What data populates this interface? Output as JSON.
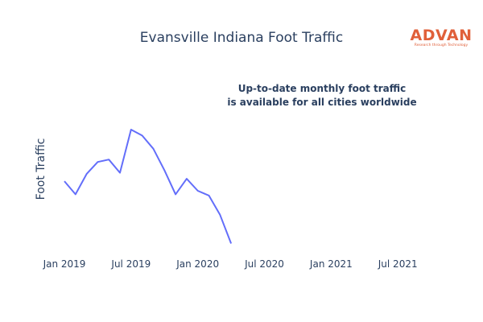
{
  "logo": {
    "name": "ADVAN",
    "tagline": "Research through Technology",
    "color": "#e0603a"
  },
  "annotation": {
    "line1": "Up-to-date monthly foot traffic",
    "line2": "is available for all cities worldwide"
  },
  "chart_data": {
    "type": "line",
    "title": "Evansville Indiana Foot Traffic",
    "xlabel": "",
    "ylabel": "Foot Traffic",
    "x_ticks": [
      "Jan 2019",
      "Jul 2019",
      "Jan 2020",
      "Jul 2020",
      "Jan 2021",
      "Jul 2021"
    ],
    "xlim": [
      "2019-01",
      "2021-08"
    ],
    "ylim": [
      0,
      100
    ],
    "grid": false,
    "y_tick_labels_visible": false,
    "line_color": "#636efa",
    "series": [
      {
        "x": [
          "2019-01",
          "2019-02",
          "2019-03",
          "2019-04",
          "2019-05",
          "2019-06",
          "2019-07",
          "2019-08",
          "2019-09",
          "2019-10",
          "2019-11",
          "2019-12",
          "2020-01",
          "2020-02",
          "2020-03",
          "2020-04"
        ],
        "values": [
          55,
          44,
          61,
          71,
          73,
          62,
          98,
          93,
          82,
          64,
          44,
          57,
          47,
          43,
          27,
          3
        ]
      }
    ]
  }
}
